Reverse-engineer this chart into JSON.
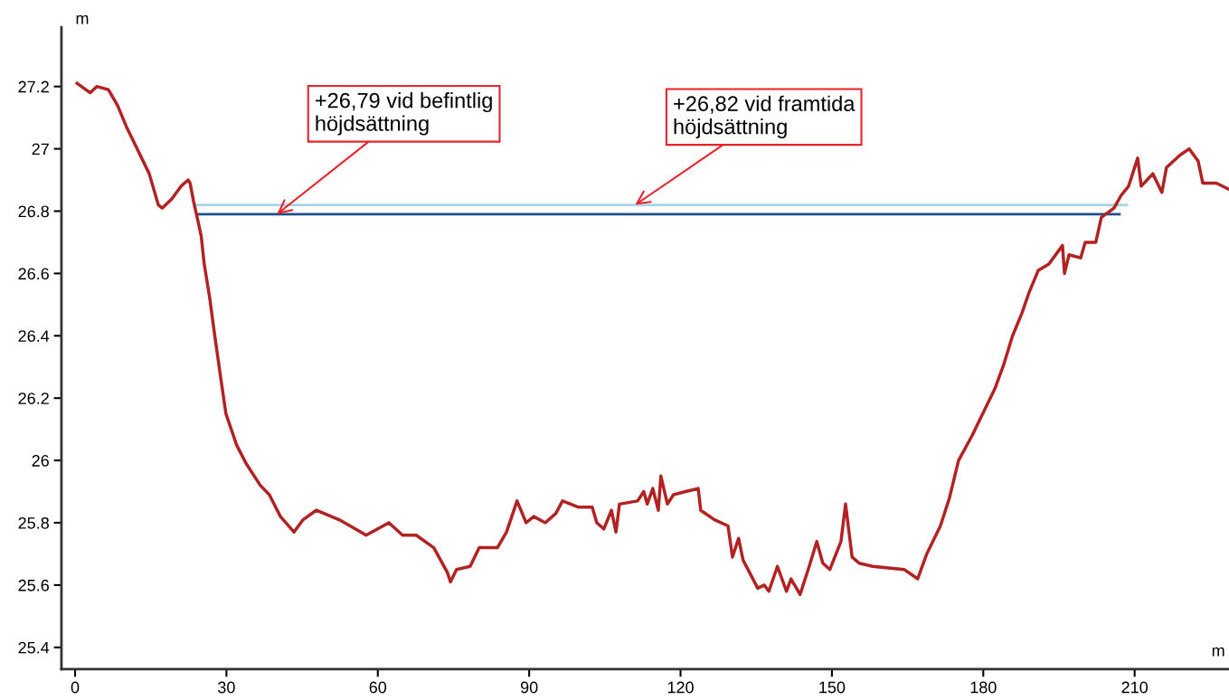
{
  "chart_data": {
    "type": "line",
    "xlabel": "m",
    "ylabel": "m",
    "xlim": [
      -2.7,
      228.7
    ],
    "ylim": [
      25.33,
      27.39
    ],
    "xticks": [
      0,
      30,
      60,
      90,
      120,
      150,
      180,
      210
    ],
    "yticks": [
      25.4,
      25.6,
      25.8,
      26,
      26.2,
      26.4,
      26.6,
      26.8,
      27,
      27.2
    ],
    "grid": false,
    "legend": false,
    "line_style": "solid",
    "marker": "none",
    "series": [
      {
        "color": "#a8d4ea",
        "x": [
          24,
          208.5
        ],
        "values": [
          26.82,
          26.82
        ]
      },
      {
        "color": "#1f4e8c",
        "x": [
          24.5,
          207
        ],
        "values": [
          26.79,
          26.79
        ]
      },
      {
        "color": "#b22222",
        "x": [
          0.4,
          3,
          4.3,
          6.6,
          8.4,
          10.2,
          12.0,
          14.7,
          16.5,
          17.3,
          19.2,
          21,
          22.4,
          22.8,
          23.5,
          24.2,
          25,
          25.6,
          26.7,
          27.6,
          29,
          29.9,
          32,
          33.9,
          36.7,
          38.5,
          40.7,
          43.4,
          45.2,
          47.8,
          52.3,
          55.6,
          57.7,
          62.2,
          64.9,
          67.6,
          71.1,
          73.8,
          74.4,
          75.6,
          78.3,
          80.1,
          83.7,
          85.5,
          87.6,
          89.4,
          90.9,
          93.2,
          95.3,
          96.6,
          99.8,
          102.5,
          103.4,
          104.8,
          106.3,
          107.2,
          107.9,
          111.5,
          112.7,
          113.4,
          114.5,
          115.6,
          116.1,
          117.4,
          118.6,
          121,
          123.5,
          124,
          126.7,
          129.4,
          130.3,
          131.5,
          132.4,
          135.3,
          136.6,
          137.5,
          139.2,
          141.0,
          141.9,
          143.7,
          145.5,
          147.0,
          148.2,
          149.6,
          151.8,
          152.7,
          154.0,
          155.4,
          158.1,
          164.3,
          167,
          168.8,
          171.5,
          173.3,
          175.1,
          177.8,
          179.6,
          182.3,
          184.1,
          185.8,
          187.6,
          189.1,
          190.9,
          193,
          195.7,
          196.1,
          197,
          199.3,
          200.2,
          202.3,
          203.4,
          205.9,
          207.3,
          208.8,
          210.6,
          211.3,
          213.6,
          215.4,
          216.3,
          219,
          220.8,
          222.6,
          223.5,
          226.2,
          228.7
        ],
        "values": [
          27.21,
          27.18,
          27.2,
          27.19,
          27.14,
          27.07,
          27.01,
          26.92,
          26.82,
          26.81,
          26.84,
          26.88,
          26.9,
          26.89,
          26.83,
          26.78,
          26.72,
          26.63,
          26.52,
          26.41,
          26.25,
          26.15,
          26.05,
          25.99,
          25.92,
          25.89,
          25.82,
          25.77,
          25.81,
          25.84,
          25.81,
          25.78,
          25.76,
          25.8,
          25.76,
          25.76,
          25.72,
          25.64,
          25.61,
          25.65,
          25.66,
          25.72,
          25.72,
          25.77,
          25.87,
          25.8,
          25.82,
          25.8,
          25.83,
          25.87,
          25.85,
          25.85,
          25.8,
          25.78,
          25.84,
          25.77,
          25.86,
          25.87,
          25.9,
          25.86,
          25.91,
          25.84,
          25.95,
          25.86,
          25.89,
          25.9,
          25.91,
          25.84,
          25.81,
          25.79,
          25.69,
          25.75,
          25.68,
          25.59,
          25.6,
          25.58,
          25.66,
          25.58,
          25.62,
          25.57,
          25.66,
          25.74,
          25.67,
          25.65,
          25.74,
          25.86,
          25.69,
          25.67,
          25.66,
          25.65,
          25.62,
          25.7,
          25.79,
          25.88,
          26.0,
          26.08,
          26.14,
          26.23,
          26.31,
          26.4,
          26.47,
          26.54,
          26.61,
          26.63,
          26.69,
          26.6,
          26.66,
          26.65,
          26.7,
          26.7,
          26.78,
          26.81,
          26.85,
          26.88,
          26.97,
          26.88,
          26.92,
          26.86,
          26.94,
          26.98,
          27.0,
          26.96,
          26.89,
          26.89,
          26.87
        ]
      }
    ],
    "annotations": [
      {
        "text": "+26,79 vid befintlig\nhöjdsättning",
        "x": 40,
        "y": 26.79
      },
      {
        "text": "+26,82 vid framtida\nhöjdsättning",
        "x": 111,
        "y": 26.82
      }
    ]
  }
}
